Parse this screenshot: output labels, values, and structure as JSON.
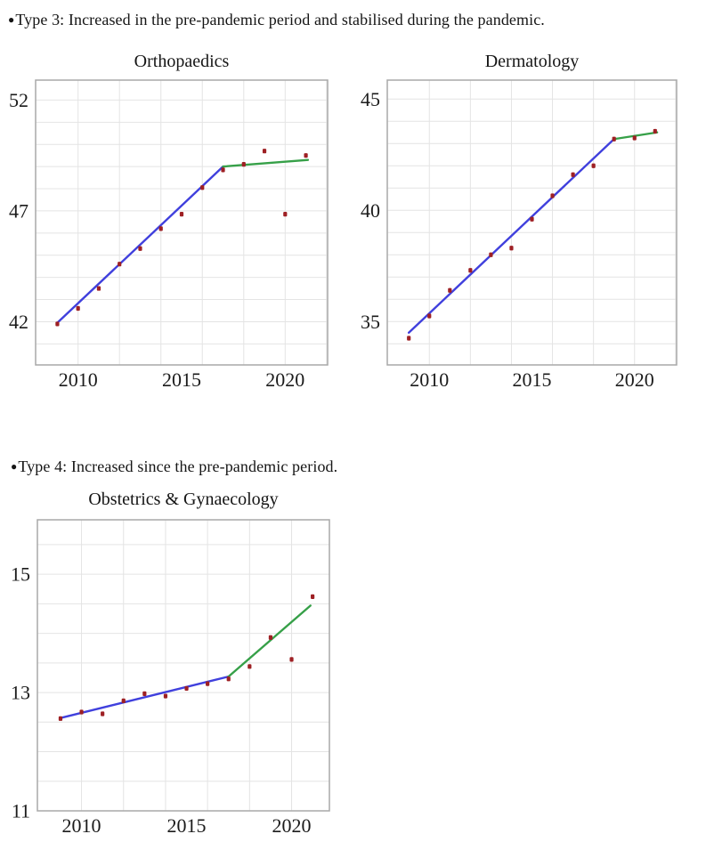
{
  "page": {
    "background": "#ffffff"
  },
  "colors": {
    "point": "#9e2024",
    "pre_pandemic_line": "#4040dd",
    "pandemic_line": "#36a048",
    "grid": "#e4e4e4",
    "frame": "#a9a9a9",
    "text": "#1b1b1b"
  },
  "sections": [
    {
      "bullet": "●",
      "heading": "Type 3: Increased in the pre-pandemic period and stabilised during the pandemic."
    },
    {
      "bullet": "●",
      "heading": "Type 4: Increased since the pre-pandemic period."
    }
  ],
  "chart_data": [
    {
      "type": "scatter",
      "title": "Orthopaedics",
      "xlabel": "",
      "ylabel": "",
      "x": [
        2009,
        2010,
        2011,
        2012,
        2013,
        2014,
        2015,
        2016,
        2017,
        2018,
        2019,
        2020,
        2021
      ],
      "series": [
        {
          "name": "annual value",
          "kind": "points",
          "color_key": "point",
          "values": [
            41.9,
            42.6,
            43.5,
            44.6,
            45.3,
            46.2,
            46.85,
            48.05,
            48.85,
            49.1,
            49.7,
            46.85,
            49.5
          ]
        }
      ],
      "trend_segments": [
        {
          "name": "pre-pandemic trend",
          "color_key": "pre_pandemic_line",
          "x": [
            2009,
            2017
          ],
          "y": [
            41.95,
            49.0
          ]
        },
        {
          "name": "pandemic trend",
          "color_key": "pandemic_line",
          "x": [
            2017,
            2021.1
          ],
          "y": [
            49.0,
            49.3
          ]
        }
      ],
      "axes": {
        "xlim": [
          2007.95,
          2022.05
        ],
        "ylim": [
          40.05,
          52.9
        ],
        "xticks": [
          2010,
          2015,
          2020
        ],
        "yticks": [
          42,
          47,
          52
        ],
        "grid_x": [
          2010,
          2012,
          2014,
          2016,
          2018,
          2020,
          2022
        ],
        "grid_y": [
          41,
          42,
          43,
          44,
          45,
          46,
          47,
          48,
          49,
          50,
          51,
          52
        ],
        "grid": true,
        "legend": "none"
      }
    },
    {
      "type": "scatter",
      "title": "Dermatology",
      "xlabel": "",
      "ylabel": "",
      "x": [
        2009,
        2010,
        2011,
        2012,
        2013,
        2014,
        2015,
        2016,
        2017,
        2018,
        2019,
        2020,
        2021
      ],
      "series": [
        {
          "name": "annual value",
          "kind": "points",
          "color_key": "point",
          "values": [
            34.25,
            35.25,
            36.4,
            37.3,
            38.0,
            38.3,
            39.6,
            40.65,
            41.6,
            42.0,
            43.2,
            43.25,
            43.55
          ]
        }
      ],
      "trend_segments": [
        {
          "name": "pre-pandemic trend",
          "color_key": "pre_pandemic_line",
          "x": [
            2009,
            2019
          ],
          "y": [
            34.5,
            43.2
          ]
        },
        {
          "name": "pandemic trend",
          "color_key": "pandemic_line",
          "x": [
            2019,
            2021.1
          ],
          "y": [
            43.2,
            43.5
          ]
        }
      ],
      "axes": {
        "xlim": [
          2007.95,
          2022.05
        ],
        "ylim": [
          33.05,
          45.85
        ],
        "xticks": [
          2010,
          2015,
          2020
        ],
        "yticks": [
          35,
          40,
          45
        ],
        "grid_x": [
          2010,
          2012,
          2014,
          2016,
          2018,
          2020,
          2022
        ],
        "grid_y": [
          34,
          35,
          36,
          37,
          38,
          39,
          40,
          41,
          42,
          43,
          44,
          45
        ],
        "grid": true,
        "legend": "none"
      }
    },
    {
      "type": "scatter",
      "title": "Obstetrics & Gynaecology",
      "xlabel": "",
      "ylabel": "",
      "x": [
        2009,
        2010,
        2011,
        2012,
        2013,
        2014,
        2015,
        2016,
        2017,
        2018,
        2019,
        2020,
        2021
      ],
      "series": [
        {
          "name": "annual value",
          "kind": "points",
          "color_key": "point",
          "values": [
            12.56,
            12.67,
            12.64,
            12.86,
            12.98,
            12.94,
            13.07,
            13.15,
            13.23,
            13.44,
            13.93,
            13.56,
            14.62
          ]
        }
      ],
      "trend_segments": [
        {
          "name": "pre-pandemic trend",
          "color_key": "pre_pandemic_line",
          "x": [
            2009,
            2017
          ],
          "y": [
            12.57,
            13.27
          ]
        },
        {
          "name": "pandemic trend",
          "color_key": "pandemic_line",
          "x": [
            2017,
            2020.9
          ],
          "y": [
            13.27,
            14.47
          ]
        }
      ],
      "axes": {
        "xlim": [
          2007.9,
          2021.8
        ],
        "ylim": [
          11.0,
          15.92
        ],
        "xticks": [
          2010,
          2015,
          2020
        ],
        "yticks": [
          11,
          13,
          15
        ],
        "grid_x": [
          2010,
          2012,
          2014,
          2016,
          2018,
          2020
        ],
        "grid_y": [
          11.5,
          12,
          12.5,
          13,
          13.5,
          14,
          14.5,
          15,
          15.5
        ],
        "grid": true,
        "legend": "none"
      }
    }
  ]
}
